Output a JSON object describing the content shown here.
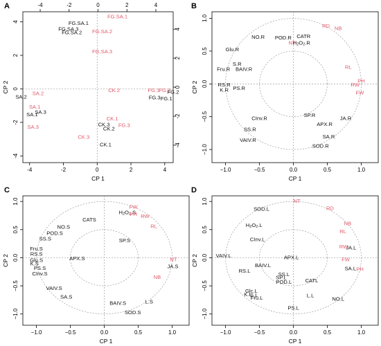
{
  "colors": {
    "black": "#111111",
    "red": "#e05a6a",
    "circle": "#9a9a9a"
  },
  "chart_data": [
    {
      "panel": "A",
      "type": "scatter",
      "xlabel": "CP 1",
      "ylabel": "CP 2",
      "xlim": [
        -4.4,
        4.5
      ],
      "ylim": [
        -4.4,
        4.6
      ],
      "xticks": [
        -4,
        -2,
        0,
        2,
        4
      ],
      "yticks": [
        -4,
        -2,
        0,
        2,
        4
      ],
      "top_ticks": [
        -4,
        -2,
        0,
        2,
        4
      ],
      "right_ticks": [
        -4,
        -2,
        0,
        2,
        4
      ],
      "top_lim": [
        -5.2,
        5.2
      ],
      "right_lim": [
        -5.2,
        5.2
      ],
      "points": [
        {
          "label": "FG.SA.1",
          "x": 1.2,
          "y": 4.3,
          "color": "red"
        },
        {
          "label": "FG.SA.1",
          "x": -1.1,
          "y": 3.9,
          "color": "black"
        },
        {
          "label": "FG.SA.3",
          "x": -1.7,
          "y": 3.55,
          "color": "black"
        },
        {
          "label": "FG.SA.2",
          "x": -1.5,
          "y": 3.35,
          "color": "black"
        },
        {
          "label": "FG.SA.2",
          "x": 0.3,
          "y": 3.4,
          "color": "red"
        },
        {
          "label": "FG.SA.3",
          "x": 0.3,
          "y": 2.2,
          "color": "red"
        },
        {
          "label": "SA.2",
          "x": -3.5,
          "y": -0.3,
          "color": "red"
        },
        {
          "label": "SA.2",
          "x": -4.5,
          "y": -0.5,
          "color": "black"
        },
        {
          "label": "SA.1",
          "x": -3.7,
          "y": -1.1,
          "color": "red"
        },
        {
          "label": "SA.3",
          "x": -3.35,
          "y": -1.4,
          "color": "black"
        },
        {
          "label": "SA.1",
          "x": -3.85,
          "y": -1.55,
          "color": "black"
        },
        {
          "label": "SA.3",
          "x": -3.8,
          "y": -2.3,
          "color": "red"
        },
        {
          "label": "CK.2",
          "x": 1.0,
          "y": -0.1,
          "color": "red"
        },
        {
          "label": "FG.1",
          "x": 3.35,
          "y": -0.1,
          "color": "red"
        },
        {
          "label": "FG.2",
          "x": 4.0,
          "y": -0.1,
          "color": "red"
        },
        {
          "label": "FG.2",
          "x": 4.5,
          "y": -0.2,
          "color": "black"
        },
        {
          "label": "FG.3",
          "x": 3.4,
          "y": -0.55,
          "color": "black"
        },
        {
          "label": "FG.1",
          "x": 4.1,
          "y": -0.6,
          "color": "black"
        },
        {
          "label": "CK.1",
          "x": 0.9,
          "y": -1.8,
          "color": "red"
        },
        {
          "label": "CK.3",
          "x": 0.4,
          "y": -2.15,
          "color": "black"
        },
        {
          "label": "CK.2",
          "x": 0.7,
          "y": -2.4,
          "color": "black"
        },
        {
          "label": "FG.3",
          "x": 1.6,
          "y": -2.2,
          "color": "red"
        },
        {
          "label": "CK.3",
          "x": -0.8,
          "y": -2.9,
          "color": "red"
        },
        {
          "label": "CK.1",
          "x": 0.5,
          "y": -3.35,
          "color": "black"
        }
      ]
    },
    {
      "panel": "B",
      "type": "scatter",
      "xlabel": "CP 1",
      "ylabel": "CP 2",
      "xlim": [
        -1.2,
        1.25
      ],
      "ylim": [
        -1.2,
        1.1
      ],
      "xticks": [
        -1.0,
        -0.5,
        0.0,
        0.5,
        1.0
      ],
      "yticks": [
        -1.0,
        -0.5,
        0.0,
        0.5,
        1.0
      ],
      "tick_labels_x": [
        "−1.0",
        "−0.5",
        "0.0",
        "0.5",
        "1.0"
      ],
      "tick_labels_y": [
        "−1.0",
        "−0.5",
        "0.0",
        "0.5",
        "1.0"
      ],
      "circles": [
        1.0,
        0.5
      ],
      "points": [
        {
          "label": "RD",
          "x": 0.48,
          "y": 0.88,
          "color": "red"
        },
        {
          "label": "NB",
          "x": 0.66,
          "y": 0.84,
          "color": "red"
        },
        {
          "label": "NO.R",
          "x": -0.52,
          "y": 0.71,
          "color": "black"
        },
        {
          "label": "POD.R",
          "x": -0.15,
          "y": 0.7,
          "color": "black"
        },
        {
          "label": "CATR",
          "x": 0.15,
          "y": 0.72,
          "color": "black"
        },
        {
          "label": "NT",
          "x": -0.02,
          "y": 0.62,
          "color": "red"
        },
        {
          "label": "H2O2.R",
          "x": 0.12,
          "y": 0.62,
          "color": "black",
          "sub": true
        },
        {
          "label": "Glu.R",
          "x": -0.9,
          "y": 0.52,
          "color": "black",
          "anchor": "start",
          "dx": -1.1
        },
        {
          "label": "S.R",
          "x": -0.83,
          "y": 0.3,
          "color": "black"
        },
        {
          "label": "Fru.R",
          "x": -1.03,
          "y": 0.22,
          "color": "black"
        },
        {
          "label": "BAIV.R",
          "x": -0.73,
          "y": 0.22,
          "color": "black"
        },
        {
          "label": "RL",
          "x": 0.81,
          "y": 0.25,
          "color": "red"
        },
        {
          "label": "PH",
          "x": 1.0,
          "y": 0.04,
          "color": "red"
        },
        {
          "label": "RW",
          "x": 0.91,
          "y": -0.02,
          "color": "red"
        },
        {
          "label": "FW",
          "x": 0.98,
          "y": -0.14,
          "color": "red"
        },
        {
          "label": "RS.R",
          "x": -1.02,
          "y": -0.02,
          "color": "black"
        },
        {
          "label": "K.R",
          "x": -1.02,
          "y": -0.1,
          "color": "black"
        },
        {
          "label": "PS.R",
          "x": -0.8,
          "y": -0.07,
          "color": "black"
        },
        {
          "label": "SP.R",
          "x": 0.24,
          "y": -0.48,
          "color": "black"
        },
        {
          "label": "JA.R",
          "x": 0.77,
          "y": -0.53,
          "color": "black"
        },
        {
          "label": "CInv.R",
          "x": -0.5,
          "y": -0.53,
          "color": "black"
        },
        {
          "label": "APX.R",
          "x": 0.46,
          "y": -0.62,
          "color": "black"
        },
        {
          "label": "SS.R",
          "x": -0.64,
          "y": -0.7,
          "color": "black"
        },
        {
          "label": "VAIV.R",
          "x": -0.67,
          "y": -0.86,
          "color": "black"
        },
        {
          "label": "SA.R",
          "x": 0.52,
          "y": -0.81,
          "color": "black"
        },
        {
          "label": "SOD.R",
          "x": 0.4,
          "y": -0.95,
          "color": "black"
        }
      ]
    },
    {
      "panel": "C",
      "type": "scatter",
      "xlabel": "CP 1",
      "ylabel": "CP 2",
      "xlim": [
        -1.2,
        1.25
      ],
      "ylim": [
        -1.2,
        1.1
      ],
      "xticks": [
        -1.0,
        -0.5,
        0.0,
        0.5,
        1.0
      ],
      "yticks": [
        -1.0,
        -0.5,
        0.0,
        0.5,
        1.0
      ],
      "tick_labels_x": [
        "−1.0",
        "−0.5",
        "0.0",
        "0.5",
        "1.0"
      ],
      "tick_labels_y": [
        "−1.0",
        "−0.5",
        "0.0",
        "0.5",
        "1.0"
      ],
      "circles": [
        1.0,
        0.5
      ],
      "points": [
        {
          "label": "FW",
          "x": 0.43,
          "y": 0.9,
          "color": "red"
        },
        {
          "label": "H2O2.S",
          "x": 0.34,
          "y": 0.8,
          "color": "black",
          "sub": true
        },
        {
          "label": "PH",
          "x": 0.43,
          "y": 0.77,
          "color": "red"
        },
        {
          "label": "RW",
          "x": 0.6,
          "y": 0.73,
          "color": "red"
        },
        {
          "label": "CATS",
          "x": -0.22,
          "y": 0.67,
          "color": "black"
        },
        {
          "label": "RL",
          "x": 0.73,
          "y": 0.55,
          "color": "red"
        },
        {
          "label": "NO.S",
          "x": -0.6,
          "y": 0.54,
          "color": "black"
        },
        {
          "label": "POD.S",
          "x": -0.73,
          "y": 0.43,
          "color": "black"
        },
        {
          "label": "SP.S",
          "x": 0.3,
          "y": 0.3,
          "color": "black"
        },
        {
          "label": "SS.S",
          "x": -0.87,
          "y": 0.33,
          "color": "black"
        },
        {
          "label": "Fru.S",
          "x": -1.0,
          "y": 0.15,
          "color": "black"
        },
        {
          "label": "RS.S",
          "x": -1.0,
          "y": 0.06,
          "color": "black"
        },
        {
          "label": "APX.S",
          "x": -0.4,
          "y": -0.02,
          "color": "black"
        },
        {
          "label": "Glu.S",
          "x": -1.0,
          "y": -0.05,
          "color": "black"
        },
        {
          "label": "K.S",
          "x": -1.03,
          "y": -0.11,
          "color": "black"
        },
        {
          "label": "NT",
          "x": 1.02,
          "y": -0.04,
          "color": "red"
        },
        {
          "label": "PS.S",
          "x": -0.95,
          "y": -0.19,
          "color": "black"
        },
        {
          "label": "JA.S",
          "x": 1.01,
          "y": -0.16,
          "color": "black"
        },
        {
          "label": "CInv.S",
          "x": -0.95,
          "y": -0.29,
          "color": "black"
        },
        {
          "label": "NB",
          "x": 0.78,
          "y": -0.35,
          "color": "red"
        },
        {
          "label": "VAIV.S",
          "x": -0.74,
          "y": -0.55,
          "color": "black"
        },
        {
          "label": "SA.S",
          "x": -0.56,
          "y": -0.7,
          "color": "black"
        },
        {
          "label": "BAIV.S",
          "x": 0.2,
          "y": -0.81,
          "color": "black"
        },
        {
          "label": "L.S",
          "x": 0.66,
          "y": -0.79,
          "color": "black"
        },
        {
          "label": "SOD.S",
          "x": 0.42,
          "y": -0.98,
          "color": "black"
        }
      ]
    },
    {
      "panel": "D",
      "type": "scatter",
      "xlabel": "CP 1",
      "ylabel": "CP 2",
      "xlim": [
        -1.2,
        1.25
      ],
      "ylim": [
        -1.2,
        1.1
      ],
      "xticks": [
        -1.0,
        -0.5,
        0.0,
        0.5,
        1.0
      ],
      "yticks": [
        -1.0,
        -0.5,
        0.0,
        0.5,
        1.0
      ],
      "tick_labels_x": [
        "−1.0",
        "−0.5",
        "0.0",
        "0.5",
        "1.0"
      ],
      "tick_labels_y": [
        "−1.0",
        "−0.5",
        "0.0",
        "0.5",
        "1.0"
      ],
      "circles": [
        1.0,
        0.5
      ],
      "points": [
        {
          "label": "NT",
          "x": 0.05,
          "y": 1.0,
          "color": "red"
        },
        {
          "label": "RD",
          "x": 0.54,
          "y": 0.87,
          "color": "red"
        },
        {
          "label": "SOD.L",
          "x": -0.47,
          "y": 0.86,
          "color": "black"
        },
        {
          "label": "NB",
          "x": 0.8,
          "y": 0.6,
          "color": "red"
        },
        {
          "label": "H2O2.L",
          "x": -0.58,
          "y": 0.57,
          "color": "black",
          "sub": true
        },
        {
          "label": "RL",
          "x": 0.73,
          "y": 0.46,
          "color": "red"
        },
        {
          "label": "CInv.L",
          "x": -0.53,
          "y": 0.32,
          "color": "black"
        },
        {
          "label": "RW",
          "x": 0.74,
          "y": 0.19,
          "color": "red"
        },
        {
          "label": "JA.L",
          "x": 0.85,
          "y": 0.17,
          "color": "black"
        },
        {
          "label": "VAIV.L",
          "x": -1.03,
          "y": 0.03,
          "color": "black"
        },
        {
          "label": "APX.L",
          "x": -0.03,
          "y": 0.0,
          "color": "black"
        },
        {
          "label": "FW",
          "x": 0.77,
          "y": -0.04,
          "color": "red"
        },
        {
          "label": "BAIV.L",
          "x": -0.45,
          "y": -0.14,
          "color": "black"
        },
        {
          "label": "SA.L",
          "x": 0.84,
          "y": -0.2,
          "color": "black"
        },
        {
          "label": "PH",
          "x": 0.98,
          "y": -0.21,
          "color": "red"
        },
        {
          "label": "RS.L",
          "x": -0.72,
          "y": -0.24,
          "color": "black"
        },
        {
          "label": "SS.L",
          "x": -0.14,
          "y": -0.3,
          "color": "black"
        },
        {
          "label": "SP.L",
          "x": -0.18,
          "y": -0.36,
          "color": "black"
        },
        {
          "label": "CATL",
          "x": 0.27,
          "y": -0.41,
          "color": "black"
        },
        {
          "label": "POD.L",
          "x": -0.14,
          "y": -0.44,
          "color": "black"
        },
        {
          "label": "Glc.L",
          "x": -0.62,
          "y": -0.6,
          "color": "black"
        },
        {
          "label": "K.L",
          "x": -0.67,
          "y": -0.66,
          "color": "black"
        },
        {
          "label": "S.L",
          "x": -0.58,
          "y": -0.67,
          "color": "black"
        },
        {
          "label": "L.L",
          "x": 0.25,
          "y": -0.68,
          "color": "black"
        },
        {
          "label": "Fru.L",
          "x": -0.54,
          "y": -0.72,
          "color": "black"
        },
        {
          "label": "NO.L",
          "x": 0.66,
          "y": -0.74,
          "color": "black"
        },
        {
          "label": "PS.L",
          "x": 0.0,
          "y": -0.9,
          "color": "black"
        }
      ]
    }
  ]
}
